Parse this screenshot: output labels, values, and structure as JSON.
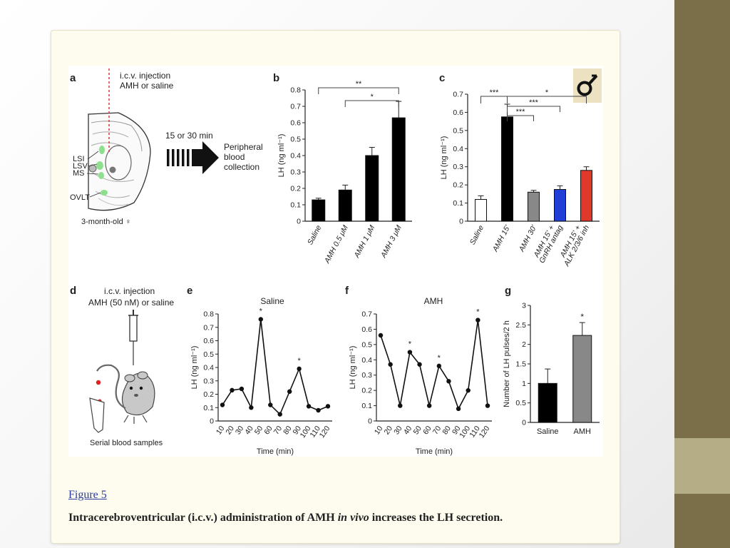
{
  "slide": {
    "accent_color": "#7b6f49",
    "accent_band_color": "#b4ad86",
    "figure_link": "Figure 5",
    "caption_before": "Intracerebroventricular (i.c.v.) administration of AMH ",
    "caption_italic": "in vivo",
    "caption_after": " increases the LH secretion.",
    "logo_icon": "female-symbol-icon"
  },
  "panels": {
    "a": {
      "letter": "a",
      "injection_line1": "i.c.v. injection",
      "injection_line2": "AMH or saline",
      "duration": "15 or 30 min",
      "collection_line1": "Peripheral",
      "collection_line2": "blood",
      "collection_line3": "collection",
      "region_lsi": "LSI",
      "region_lsv": "LSV",
      "region_ms": "MS",
      "region_ovlt": "OVLT",
      "subject": "3-month-old ♀"
    },
    "d": {
      "letter": "d",
      "injection_line1": "i.c.v. injection",
      "injection_line2": "AMH (50 nM) or saline",
      "samples": "Serial blood samples"
    }
  },
  "chart_data": [
    {
      "panel": "b",
      "type": "bar",
      "categories": [
        "Saline",
        "AMH 0.5 μM",
        "AMH 1 μM",
        "AMH 3 μM"
      ],
      "values": [
        0.13,
        0.19,
        0.4,
        0.63
      ],
      "errors": [
        0.01,
        0.03,
        0.05,
        0.1
      ],
      "colors": [
        "#000000",
        "#000000",
        "#000000",
        "#000000"
      ],
      "ylabel": "LH (ng ml⁻¹)",
      "ylim": [
        0,
        0.8
      ],
      "yticks": [
        "0",
        "0.1",
        "0.2",
        "0.3",
        "0.4",
        "0.5",
        "0.6",
        "0.7",
        "0.8"
      ],
      "significance": [
        {
          "from": 0,
          "to": 3,
          "label": "**"
        },
        {
          "from": 1,
          "to": 3,
          "label": "*"
        }
      ]
    },
    {
      "panel": "c",
      "type": "bar",
      "categories": [
        "Saline",
        "AMH 15'",
        "AMH 30'",
        "AMH 15' + GnRH antag",
        "AMH 15' + ALK 2/3/6 inh"
      ],
      "category_lines": [
        [
          "Saline"
        ],
        [
          "AMH 15'"
        ],
        [
          "AMH 30'"
        ],
        [
          "AMH 15' +",
          "GnRH antag"
        ],
        [
          "AMH 15' +",
          "ALK 2/3/6 inh"
        ]
      ],
      "values": [
        0.12,
        0.575,
        0.16,
        0.175,
        0.28
      ],
      "errors": [
        0.02,
        0.07,
        0.01,
        0.02,
        0.02
      ],
      "colors": [
        "#ffffff",
        "#000000",
        "#888888",
        "#1f3fd6",
        "#e0382b"
      ],
      "ylabel": "LH (ng ml⁻¹)",
      "ylim": [
        0,
        0.7
      ],
      "yticks": [
        "0",
        "0.1",
        "0.2",
        "0.3",
        "0.4",
        "0.5",
        "0.6",
        "0.7"
      ],
      "significance": [
        {
          "from": 0,
          "to": 1,
          "label": "***"
        },
        {
          "from": 1,
          "to": 4,
          "label": "*"
        },
        {
          "from": 1,
          "to": 3,
          "label": "***"
        },
        {
          "from": 1,
          "to": 2,
          "label": "***"
        }
      ]
    },
    {
      "panel": "e",
      "type": "line",
      "title": "Saline",
      "x": [
        10,
        20,
        30,
        40,
        50,
        60,
        70,
        80,
        90,
        100,
        110,
        120
      ],
      "y": [
        0.12,
        0.23,
        0.24,
        0.1,
        0.76,
        0.12,
        0.05,
        0.22,
        0.39,
        0.11,
        0.08,
        0.11
      ],
      "peaks": [
        50,
        90
      ],
      "xlabel": "Time (min)",
      "ylabel": "LH (ng ml⁻¹)",
      "ylim": [
        0,
        0.8
      ],
      "yticks": [
        "0",
        "0.1",
        "0.2",
        "0.3",
        "0.4",
        "0.5",
        "0.6",
        "0.7",
        "0.8"
      ]
    },
    {
      "panel": "f",
      "type": "line",
      "title": "AMH",
      "x": [
        10,
        20,
        30,
        40,
        50,
        60,
        70,
        80,
        90,
        100,
        110,
        120
      ],
      "y": [
        0.56,
        0.37,
        0.1,
        0.45,
        0.37,
        0.1,
        0.36,
        0.26,
        0.08,
        0.2,
        0.66,
        0.1
      ],
      "peaks": [
        40,
        70,
        110
      ],
      "xlabel": "Time (min)",
      "ylabel": "LH (ng ml⁻¹)",
      "ylim": [
        0,
        0.7
      ],
      "yticks": [
        "0",
        "0.1",
        "0.2",
        "0.3",
        "0.4",
        "0.5",
        "0.6",
        "0.7"
      ]
    },
    {
      "panel": "g",
      "type": "bar",
      "categories": [
        "Saline",
        "AMH"
      ],
      "values": [
        1.0,
        2.23
      ],
      "errors": [
        0.37,
        0.33
      ],
      "colors": [
        "#000000",
        "#888888"
      ],
      "ylabel": "Number of LH pulses/2 h",
      "ylim": [
        0,
        3
      ],
      "yticks": [
        "0",
        "0.5",
        "1",
        "1.5",
        "2",
        "2.5",
        "3"
      ],
      "significance": [
        {
          "bar": 1,
          "label": "*"
        }
      ]
    }
  ]
}
